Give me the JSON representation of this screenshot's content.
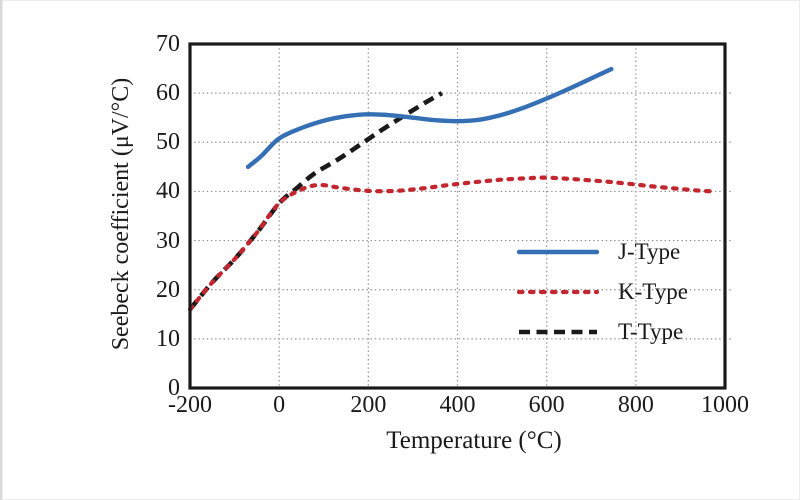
{
  "figure": {
    "background": "#ffffff",
    "edge_color": "#d9d9d9"
  },
  "chart_data": {
    "type": "line",
    "title": "",
    "xlabel": "Temperature (°C)",
    "ylabel": "Seebeck coefficient (μV/°C)",
    "xlim": [
      -200,
      1000
    ],
    "ylim": [
      0,
      70
    ],
    "xticks": [
      -200,
      0,
      200,
      400,
      600,
      800,
      1000
    ],
    "yticks": [
      0,
      10,
      20,
      30,
      40,
      50,
      60,
      70
    ],
    "grid": {
      "show": true,
      "x_values": [
        0,
        200,
        400,
        600,
        800
      ],
      "y_values": [
        10,
        20,
        30,
        40,
        50,
        60
      ],
      "color": "#8f8f8f",
      "style": "dotted"
    },
    "frame_color": "#1a1a1a",
    "text_color": "#1a1a1a",
    "legend": {
      "position": "inside-right-middle"
    },
    "series": [
      {
        "name": "J-Type",
        "color": "#3570b4",
        "line_style": "solid",
        "points": [
          [
            -70,
            45
          ],
          [
            -40,
            47.2
          ],
          [
            0,
            50.8
          ],
          [
            50,
            52.9
          ],
          [
            100,
            54.4
          ],
          [
            150,
            55.3
          ],
          [
            200,
            55.7
          ],
          [
            250,
            55.5
          ],
          [
            300,
            55.0
          ],
          [
            350,
            54.5
          ],
          [
            400,
            54.3
          ],
          [
            450,
            54.6
          ],
          [
            500,
            55.6
          ],
          [
            550,
            57.1
          ],
          [
            600,
            58.9
          ],
          [
            650,
            60.9
          ],
          [
            700,
            63.0
          ],
          [
            745,
            64.9
          ]
        ]
      },
      {
        "name": "K-Type",
        "color": "#c2262e",
        "line_style": "dotted",
        "points": [
          [
            -200,
            16
          ],
          [
            -150,
            21.5
          ],
          [
            -100,
            26.2
          ],
          [
            -50,
            31.6
          ],
          [
            0,
            37.6
          ],
          [
            50,
            40.4
          ],
          [
            90,
            41.3
          ],
          [
            140,
            40.7
          ],
          [
            200,
            40.1
          ],
          [
            260,
            40.1
          ],
          [
            320,
            40.6
          ],
          [
            380,
            41.3
          ],
          [
            440,
            41.9
          ],
          [
            500,
            42.4
          ],
          [
            560,
            42.7
          ],
          [
            600,
            42.8
          ],
          [
            660,
            42.5
          ],
          [
            720,
            42.1
          ],
          [
            780,
            41.6
          ],
          [
            840,
            41.0
          ],
          [
            900,
            40.5
          ],
          [
            950,
            40.1
          ],
          [
            980,
            40
          ]
        ]
      },
      {
        "name": "T-Type",
        "color": "#1a1a1a",
        "line_style": "dashed",
        "points": [
          [
            -200,
            16
          ],
          [
            -150,
            21.5
          ],
          [
            -100,
            26.2
          ],
          [
            -50,
            31.6
          ],
          [
            0,
            37.6
          ],
          [
            40,
            40.7
          ],
          [
            80,
            43.7
          ],
          [
            130,
            46.4
          ],
          [
            180,
            49.4
          ],
          [
            230,
            52.5
          ],
          [
            280,
            55.4
          ],
          [
            330,
            58.2
          ],
          [
            365,
            60
          ]
        ]
      }
    ]
  }
}
